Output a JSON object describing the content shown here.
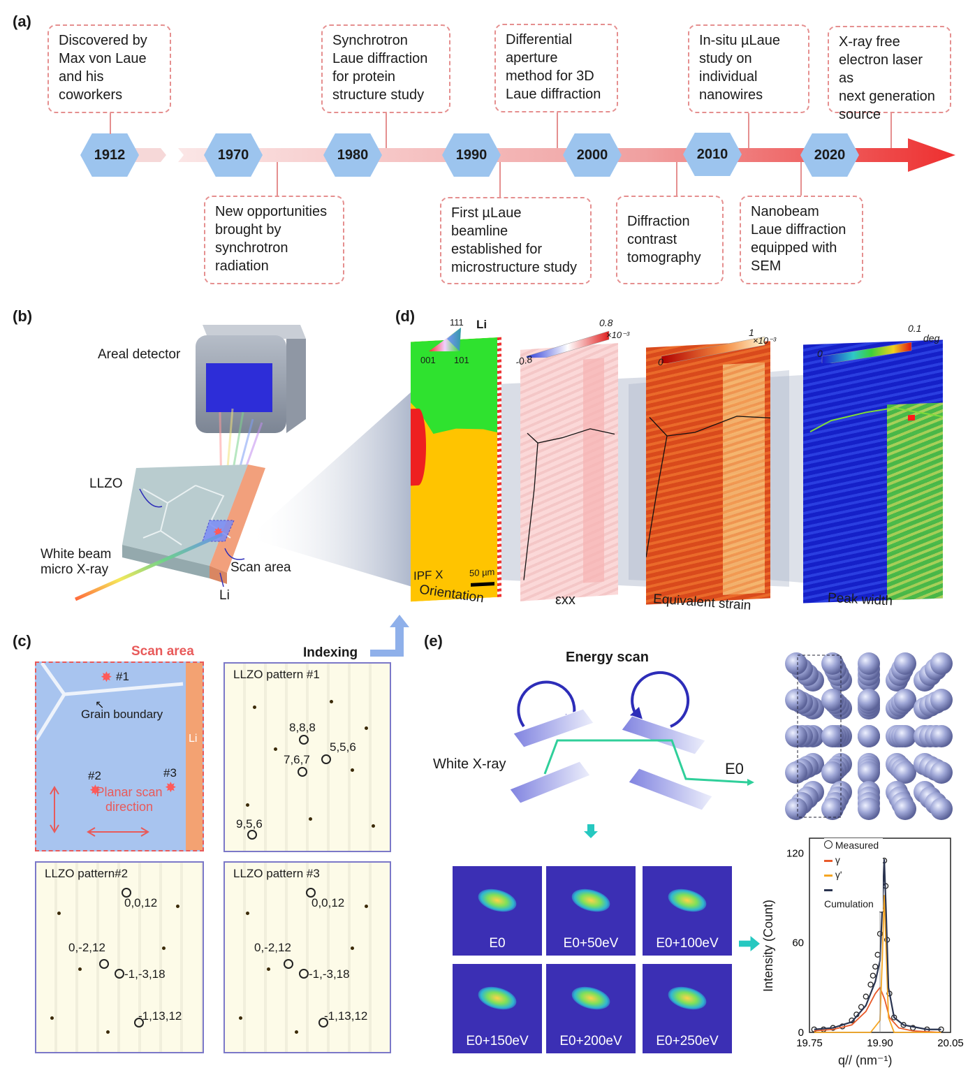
{
  "panels": {
    "a": "(a)",
    "b": "(b)",
    "c": "(c)",
    "d": "(d)",
    "e": "(e)"
  },
  "timeline": {
    "years": [
      "1912",
      "1970",
      "1980",
      "1990",
      "2000",
      "2010",
      "2020"
    ],
    "top_boxes": [
      "Discovered by\nMax von Laue\nand his\ncoworkers",
      "Synchrotron\nLaue diffraction\nfor protein\nstructure study",
      "Differential\naperture\nmethod for 3D\nLaue diffraction",
      "In-situ µLaue\nstudy on\nindividual\nnanowires",
      "X-ray free\nelectron laser as\nnext generation\nsource"
    ],
    "bottom_boxes": [
      "New opportunities\nbrought by\nsynchrotron\nradiation",
      "First µLaue\nbeamline\nestablished for\nmicrostructure study",
      "Diffraction\ncontrast\ntomography",
      "Nanobeam\nLaue diffraction\nequipped with\nSEM"
    ]
  },
  "panel_b": {
    "detector": "Areal detector",
    "llzo": "LLZO",
    "beam": "White beam\nmicro X-ray",
    "scan_area": "Scan area",
    "li": "Li"
  },
  "panel_d": {
    "ipf_111": "111",
    "ipf_001": "001",
    "ipf_101": "101",
    "li": "Li",
    "ipf_x": "IPF X",
    "scalebar": "50 µm",
    "exx_min": "-0.8",
    "exx_max": "0.8",
    "exx_unit": "×10⁻³",
    "eq_min": "0",
    "eq_max": "1",
    "eq_unit": "×10⁻³",
    "pw_min": "0",
    "pw_max": "0.1",
    "pw_unit": "deg",
    "captions": [
      "Orientation",
      "εxx",
      "Equivalent strain",
      "Peak width"
    ]
  },
  "panel_c": {
    "scan_area": "Scan area",
    "indexing": "Indexing",
    "spot1": "#1",
    "spot2": "#2",
    "spot3": "#3",
    "grain_boundary": "Grain boundary",
    "li": "Li",
    "planar": "Planar scan\ndirection",
    "p1_title": "LLZO pattern #1",
    "p1_hkl": [
      "8,8,8",
      "5,5,6",
      "7,6,7",
      "9,5,6"
    ],
    "p2_title": "LLZO pattern#2",
    "p2_hkl": [
      "0,0,12",
      "0,-2,12",
      "-1,-3,18",
      "-1,13,12"
    ],
    "p3_title": "LLZO pattern #3",
    "p3_hkl": [
      "0,0,12",
      "0,-2,12",
      "-1,-3,18",
      "-1,13,12"
    ]
  },
  "panel_e": {
    "energy_scan": "Energy scan",
    "white_xray": "White X-ray",
    "e0": "E0",
    "spots": [
      "E0",
      "E0+50eV",
      "E0+100eV",
      "E0+150eV",
      "E0+200eV",
      "E0+250eV"
    ]
  },
  "colors": {
    "timeline_arrow": "#ee2f2f",
    "hex": "#9cc4ee",
    "box_border": "#e58f8f",
    "scan_red": "#e85a5a"
  },
  "chart_data": {
    "type": "line",
    "xlabel": "q// (nm⁻¹)",
    "ylabel": "Intensity (Count)",
    "xlim": [
      19.75,
      20.05
    ],
    "ylim": [
      0,
      130
    ],
    "xticks": [
      "19.75",
      "19.90",
      "20.05"
    ],
    "yticks": [
      "0",
      "60",
      "120"
    ],
    "legend": [
      "Measured",
      "γ",
      "γ'",
      "Cumulation"
    ],
    "legend_position": "top-right",
    "series": [
      {
        "name": "Measured",
        "x": [
          19.76,
          19.78,
          19.8,
          19.82,
          19.84,
          19.85,
          19.86,
          19.87,
          19.88,
          19.885,
          19.89,
          19.895,
          19.9,
          19.903,
          19.906,
          19.909,
          19.912,
          19.915,
          19.92,
          19.93,
          19.95,
          19.97,
          20.0,
          20.03
        ],
        "y": [
          2,
          2,
          3,
          4,
          8,
          12,
          17,
          24,
          32,
          38,
          44,
          52,
          66,
          82,
          100,
          115,
          98,
          62,
          26,
          10,
          5,
          3,
          2,
          2
        ]
      },
      {
        "name": "γ",
        "x": [
          19.76,
          19.8,
          19.84,
          19.87,
          19.89,
          19.9,
          19.91,
          19.92,
          19.94,
          19.97,
          20.03
        ],
        "y": [
          1,
          2,
          5,
          14,
          26,
          30,
          22,
          10,
          3,
          1,
          0
        ]
      },
      {
        "name": "γ'",
        "x": [
          19.76,
          19.88,
          19.9,
          19.905,
          19.909,
          19.913,
          19.918,
          19.93,
          20.03
        ],
        "y": [
          0,
          0,
          8,
          50,
          92,
          55,
          10,
          0,
          0
        ]
      },
      {
        "name": "Cumulation",
        "x": [
          19.76,
          19.8,
          19.84,
          19.87,
          19.89,
          19.9,
          19.905,
          19.909,
          19.913,
          19.918,
          19.93,
          19.95,
          20.0,
          20.03
        ],
        "y": [
          2,
          3,
          7,
          18,
          34,
          48,
          84,
          116,
          80,
          30,
          10,
          5,
          2,
          2
        ]
      }
    ]
  }
}
